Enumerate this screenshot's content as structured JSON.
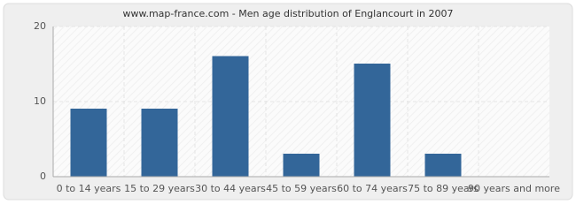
{
  "chart_data": {
    "type": "bar",
    "title": "www.map-france.com - Men age distribution of Englancourt in 2007",
    "categories": [
      "0 to 14 years",
      "15 to 29 years",
      "30 to 44 years",
      "45 to 59 years",
      "60 to 74 years",
      "75 to 89 years",
      "90 years and more"
    ],
    "values": [
      9,
      9,
      16,
      3,
      15,
      3,
      0
    ],
    "color": "#336699",
    "ylim": [
      0,
      20
    ],
    "yticks": [
      0,
      10,
      20
    ],
    "grid": true
  }
}
